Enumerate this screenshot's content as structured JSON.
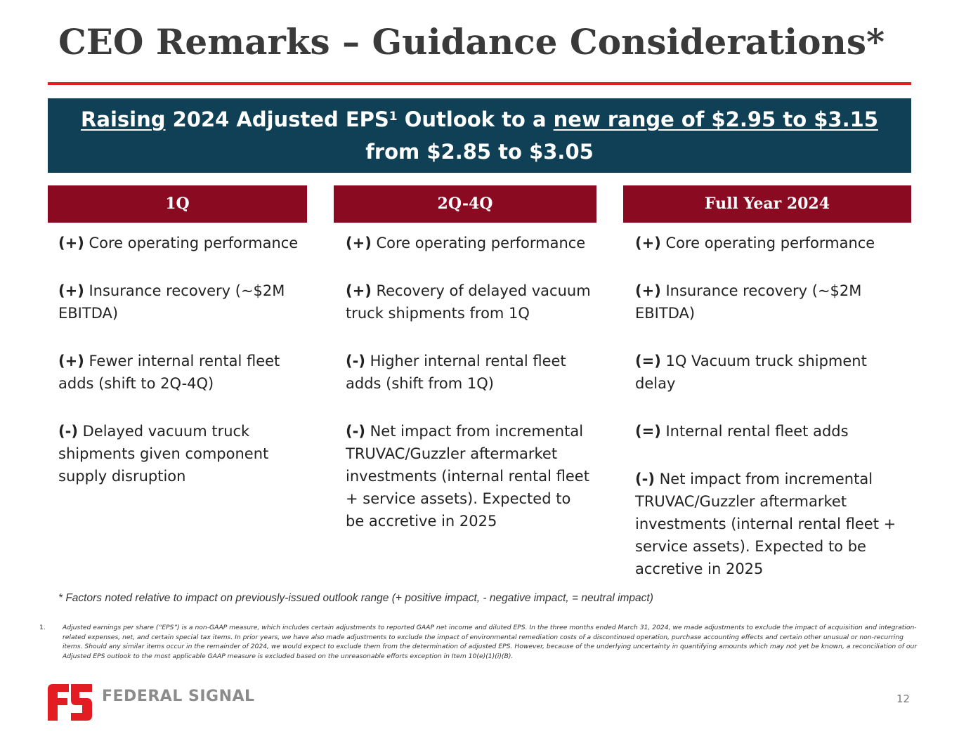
{
  "slide": {
    "title": "CEO Remarks – Guidance Considerations*",
    "page_number": "12"
  },
  "banner": {
    "raising": "Raising",
    "text_a": " 2024 Adjusted EPS",
    "superscript": "1",
    "text_b": " Outlook to a ",
    "new_range": "new range of $2.95 to $3.15 ",
    "text_c": "from $2.85 to $3.05"
  },
  "columns": [
    {
      "header": "1Q",
      "items": [
        {
          "sign": "(+)",
          "text": " Core operating performance"
        },
        {
          "sign": "(+)",
          "text": " Insurance recovery (~$2M EBITDA)"
        },
        {
          "sign": "(+)",
          "text": " Fewer internal rental fleet adds (shift to 2Q-4Q)"
        },
        {
          "sign": "(-)",
          "text": " Delayed vacuum truck shipments given component supply disruption"
        }
      ]
    },
    {
      "header": "2Q-4Q",
      "items": [
        {
          "sign": "(+)",
          "text": " Core operating performance"
        },
        {
          "sign": "(+)",
          "text": " Recovery of delayed vacuum truck shipments from 1Q"
        },
        {
          "sign": "(-)",
          "text": " Higher internal rental fleet adds (shift from 1Q)"
        },
        {
          "sign": "(-)",
          "text": " Net impact from incremental TRUVAC/Guzzler aftermarket investments (internal rental fleet + service assets). Expected to be accretive in 2025"
        }
      ]
    },
    {
      "header": "Full Year 2024",
      "items": [
        {
          "sign": "(+)",
          "text": " Core operating performance"
        },
        {
          "sign": "(+)",
          "text": " Insurance recovery (~$2M EBITDA)"
        },
        {
          "sign": "(=)",
          "text": " 1Q Vacuum truck shipment delay"
        },
        {
          "sign": "(=)",
          "text": " Internal rental fleet adds"
        },
        {
          "sign": "(-)",
          "text": " Net impact from incremental TRUVAC/Guzzler aftermarket investments (internal rental fleet + service assets). Expected to be accretive in 2025"
        }
      ]
    }
  ],
  "note": "* Factors noted relative to impact on previously-issued outlook range (+ positive impact, - negative impact, = neutral impact)",
  "footnote": {
    "number": "1.",
    "text": "Adjusted earnings per share (“EPS”) is a non-GAAP measure, which includes certain adjustments to reported GAAP net income and diluted EPS. In the three months ended March 31, 2024, we made adjustments to exclude the impact of acquisition and integration-related expenses, net, and certain special tax items. In prior years, we have also made adjustments to exclude the impact of environmental remediation costs of a discontinued operation, purchase accounting effects and certain other unusual or non-recurring items. Should any similar items occur in the remainder of 2024, we would expect to exclude them from the determination of adjusted EPS. However, because of the underlying uncertainty in quantifying amounts which may not yet be known, a reconciliation of our Adjusted EPS outlook to the most applicable GAAP measure is excluded based on the unreasonable efforts exception in Item 10(e)(1)(i)(B)."
  },
  "logo": {
    "text": "FEDERAL SIGNAL",
    "icon": "federal-signal-fs-logo-icon",
    "brand_color": "#e31b23"
  },
  "colors": {
    "title": "#3a3a3a",
    "rule": "#e31b23",
    "banner_bg": "#0f4055",
    "header_bg": "#8a0a22"
  }
}
